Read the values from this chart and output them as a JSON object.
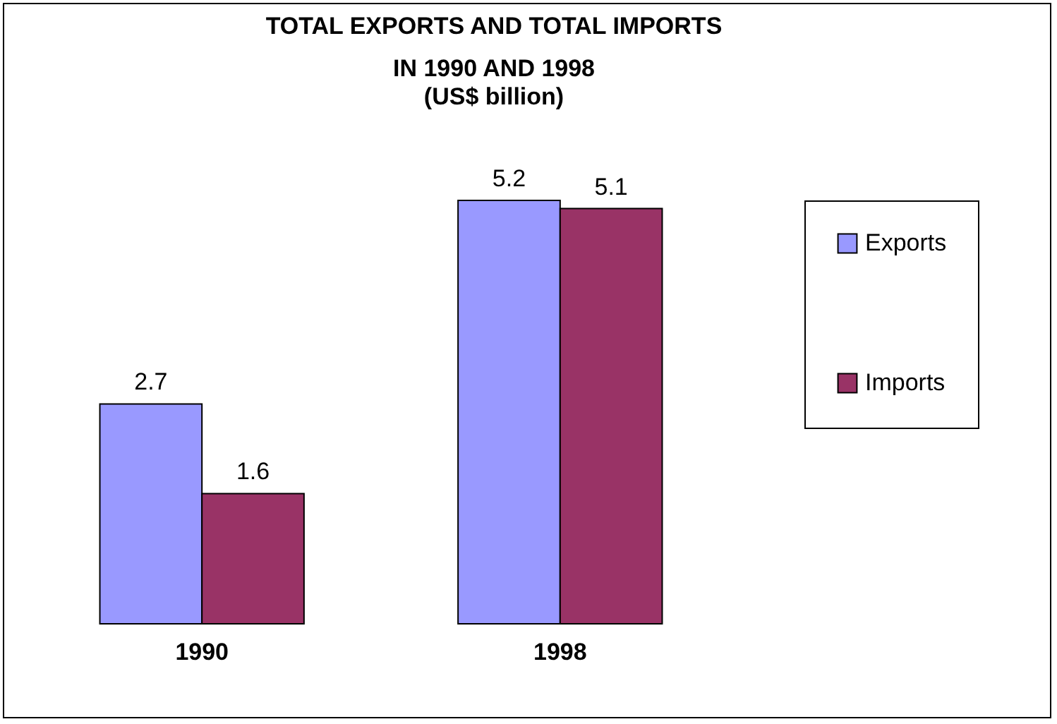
{
  "chart_data": {
    "type": "bar",
    "title": "TOTAL EXPORTS AND TOTAL IMPORTS\nIN 1990 AND 1998",
    "subtitle": "(US$ billion)",
    "categories": [
      "1990",
      "1998"
    ],
    "series": [
      {
        "name": "Exports",
        "color": "#9999ff",
        "values": [
          2.7,
          5.2
        ]
      },
      {
        "name": "Imports",
        "color": "#993366",
        "values": [
          1.6,
          5.1
        ]
      }
    ],
    "data_labels": true,
    "legend": "right"
  }
}
